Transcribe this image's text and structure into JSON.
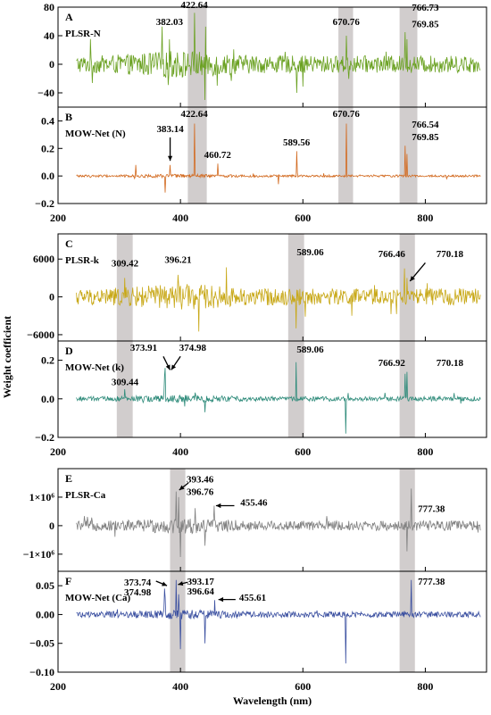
{
  "figure": {
    "xlabel": "Wavelength (nm)",
    "ylabel": "Weight coefficient"
  },
  "chart_data": [
    {
      "group": 1,
      "type": "line",
      "xlim": [
        200,
        900
      ],
      "xticks": [
        200,
        400,
        600,
        800
      ],
      "xlabel": "",
      "shaded_bands": [
        [
          412,
          443
        ],
        [
          658,
          682
        ],
        [
          758,
          787
        ]
      ],
      "panels": [
        {
          "letter": "A",
          "title": "PLSR-N",
          "color": "#6aa121",
          "ylim": [
            -60,
            80
          ],
          "yticks": [
            80,
            40,
            0,
            -40
          ],
          "ytick_labels": [
            "80",
            "40",
            "0",
            "−40"
          ],
          "amplitude": 12,
          "noise_start": 230,
          "noise_end": 890,
          "peaks": [
            [
              382.03,
              35
            ],
            [
              422.64,
              72
            ],
            [
              670.76,
              40
            ],
            [
              766.73,
              45
            ],
            [
              769.85,
              35
            ]
          ],
          "negative_peaks": [
            [
              440,
              -50
            ],
            [
              590,
              -40
            ],
            [
              460,
              -30
            ]
          ],
          "annotations": [
            {
              "text": "382.03",
              "x": 382.03,
              "y": 55
            },
            {
              "text": "422.64",
              "x": 422.64,
              "y": 79
            },
            {
              "text": "670.76",
              "x": 670.76,
              "y": 55
            },
            {
              "text": "766.73",
              "x": 800,
              "y": 75
            },
            {
              "text": "769.85",
              "x": 800,
              "y": 52
            }
          ],
          "arrows": []
        },
        {
          "letter": "B",
          "title": "MOW-Net (N)",
          "color": "#d2691e",
          "ylim": [
            -0.2,
            0.5
          ],
          "yticks": [
            0.4,
            0.2,
            0.0,
            -0.2
          ],
          "ytick_labels": [
            "0.4",
            "0.2",
            "0.0",
            "−0.2"
          ],
          "amplitude": 0.008,
          "noise_start": 230,
          "noise_end": 890,
          "peaks": [
            [
              383.14,
              0.08
            ],
            [
              422.64,
              0.38
            ],
            [
              460.72,
              0.09
            ],
            [
              589.56,
              0.18
            ],
            [
              670.76,
              0.38
            ],
            [
              766.54,
              0.22
            ],
            [
              769.85,
              0.16
            ],
            [
              327,
              0.08
            ]
          ],
          "negative_peaks": [
            [
              375,
              -0.12
            ],
            [
              560,
              -0.06
            ]
          ],
          "annotations": [
            {
              "text": "383.14",
              "x": 383.14,
              "y": 0.32
            },
            {
              "text": "422.64",
              "x": 422.64,
              "y": 0.43
            },
            {
              "text": "460.72",
              "x": 460.72,
              "y": 0.13
            },
            {
              "text": "589.56",
              "x": 589.56,
              "y": 0.22
            },
            {
              "text": "670.76",
              "x": 670.76,
              "y": 0.43
            },
            {
              "text": "766.54",
              "x": 800,
              "y": 0.35
            },
            {
              "text": "769.85",
              "x": 800,
              "y": 0.26
            }
          ],
          "arrows": [
            [
              383.14,
              0.28,
              383.14,
              0.11
            ]
          ]
        }
      ]
    },
    {
      "group": 2,
      "type": "line",
      "xlim": [
        200,
        900
      ],
      "xticks": [
        200,
        400,
        600,
        800
      ],
      "xlabel": "",
      "shaded_bands": [
        [
          296,
          322
        ],
        [
          576,
          602
        ],
        [
          758,
          783
        ]
      ],
      "panels": [
        {
          "letter": "C",
          "title": "PLSR-k",
          "color": "#c8a817",
          "ylim": [
            -7000,
            10000
          ],
          "yticks": [
            6000,
            0,
            -6000
          ],
          "ytick_labels": [
            "6000",
            "0",
            "−6000"
          ],
          "amplitude": 1300,
          "noise_start": 230,
          "noise_end": 890,
          "peaks": [
            [
              309.42,
              3000
            ],
            [
              396.21,
              3500
            ],
            [
              589.06,
              9000
            ],
            [
              766.46,
              4500
            ],
            [
              770.18,
              3000
            ]
          ],
          "negative_peaks": [
            [
              430,
              -5500
            ],
            [
              589,
              -5000
            ],
            [
              680,
              -3000
            ]
          ],
          "annotations": [
            {
              "text": "309.42",
              "x": 309.42,
              "y": 4800
            },
            {
              "text": "396.21",
              "x": 396.21,
              "y": 5400
            },
            {
              "text": "589.06",
              "x": 612,
              "y": 6600
            },
            {
              "text": "766.46",
              "x": 745,
              "y": 6300
            },
            {
              "text": "770.18",
              "x": 840,
              "y": 6300
            }
          ],
          "arrows": [
            [
              800,
              5400,
              775,
              2500
            ]
          ]
        },
        {
          "letter": "D",
          "title": "MOW-Net (k)",
          "color": "#2e8b7a",
          "ylim": [
            -0.2,
            0.3
          ],
          "yticks": [
            0.2,
            0.0,
            -0.2
          ],
          "ytick_labels": [
            "0.2",
            "0.0",
            "−0.2"
          ],
          "amplitude": 0.012,
          "noise_start": 230,
          "noise_end": 890,
          "peaks": [
            [
              373.91,
              0.12
            ],
            [
              374.98,
              0.16
            ],
            [
              309.44,
              0.05
            ],
            [
              589.06,
              0.19
            ],
            [
              766.92,
              0.13
            ],
            [
              770.18,
              0.14
            ]
          ],
          "negative_peaks": [
            [
              440,
              -0.07
            ],
            [
              670,
              -0.18
            ]
          ],
          "annotations": [
            {
              "text": "373.91",
              "x": 340,
              "y": 0.25
            },
            {
              "text": "374.98",
              "x": 420,
              "y": 0.25
            },
            {
              "text": "309.44",
              "x": 309.44,
              "y": 0.07
            },
            {
              "text": "589.06",
              "x": 612,
              "y": 0.24
            },
            {
              "text": "766.92",
              "x": 745,
              "y": 0.17
            },
            {
              "text": "770.18",
              "x": 840,
              "y": 0.17
            }
          ],
          "arrows": [
            [
              372,
              0.22,
              383,
              0.15
            ],
            [
              400,
              0.22,
              385,
              0.15
            ]
          ]
        }
      ]
    },
    {
      "group": 3,
      "type": "line",
      "xlim": [
        200,
        900
      ],
      "xticks": [
        200,
        400,
        600,
        800
      ],
      "xlabel": "Wavelength (nm)",
      "shaded_bands": [
        [
          383,
          408
        ],
        [
          758,
          783
        ]
      ],
      "panels": [
        {
          "letter": "E",
          "title": "PLSR-Ca",
          "color": "#808080",
          "ylim": [
            -1600000,
            2000000
          ],
          "yticks": [
            1000000,
            0,
            -1000000
          ],
          "ytick_labels": [
            "1×10⁶",
            "0",
            "−1×10⁶"
          ],
          "amplitude": 170000,
          "noise_start": 230,
          "noise_end": 890,
          "peaks": [
            [
              393.46,
              1200000
            ],
            [
              396.76,
              1000000
            ],
            [
              455.46,
              700000
            ],
            [
              777.38,
              1300000
            ]
          ],
          "negative_peaks": [
            [
              400,
              -1100000
            ],
            [
              440,
              -700000
            ],
            [
              770,
              -900000
            ]
          ],
          "annotations": [
            {
              "text": "393.46",
              "x": 432,
              "y": 1520000
            },
            {
              "text": "396.76",
              "x": 432,
              "y": 1070000
            },
            {
              "text": "455.46",
              "x": 520,
              "y": 700000
            },
            {
              "text": "777.38",
              "x": 810,
              "y": 480000
            }
          ],
          "arrows": [
            [
              413,
              1500000,
              398,
              1250000
            ],
            [
              488,
              700000,
              458,
              700000
            ]
          ]
        },
        {
          "letter": "F",
          "title": "MOW-Net (Ca)",
          "color": "#3a4fa0",
          "ylim": [
            -0.1,
            0.075
          ],
          "yticks": [
            0.05,
            0.0,
            -0.05,
            -0.1
          ],
          "ytick_labels": [
            "0.05",
            "0.00",
            "−0.05",
            "−0.10"
          ],
          "amplitude": 0.005,
          "noise_start": 230,
          "noise_end": 890,
          "peaks": [
            [
              373.74,
              0.045
            ],
            [
              374.98,
              0.03
            ],
            [
              393.17,
              0.06
            ],
            [
              396.64,
              0.035
            ],
            [
              455.61,
              0.025
            ],
            [
              777.38,
              0.06
            ]
          ],
          "negative_peaks": [
            [
              400,
              -0.06
            ],
            [
              670,
              -0.085
            ],
            [
              440,
              -0.05
            ]
          ],
          "annotations": [
            {
              "text": "373.74",
              "x": 330,
              "y": 0.05
            },
            {
              "text": "374.98",
              "x": 330,
              "y": 0.033
            },
            {
              "text": "393.17",
              "x": 433,
              "y": 0.052
            },
            {
              "text": "396.64",
              "x": 433,
              "y": 0.035
            },
            {
              "text": "455.61",
              "x": 518,
              "y": 0.024
            },
            {
              "text": "777.38",
              "x": 810,
              "y": 0.052
            }
          ],
          "arrows": [
            [
              360,
              0.058,
              378,
              0.05
            ],
            [
              412,
              0.056,
              396,
              0.052
            ],
            [
              490,
              0.026,
              462,
              0.026
            ]
          ]
        }
      ]
    }
  ]
}
